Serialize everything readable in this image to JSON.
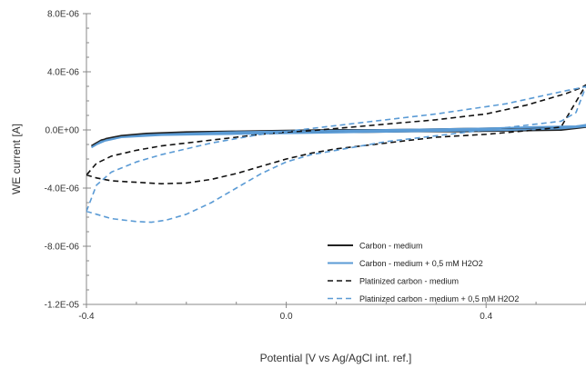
{
  "chart_data": {
    "type": "line",
    "title": "",
    "xlabel": "Potential [V vs Ag/AgCl int. ref.]",
    "ylabel": "WE current [A]",
    "xlim": [
      -0.4,
      0.6
    ],
    "ylim": [
      -1.2e-05,
      8e-06
    ],
    "x_ticks": [
      -0.4,
      0.0,
      0.4
    ],
    "x_tick_labels": [
      "-0.4",
      "0.0",
      "0.4"
    ],
    "y_ticks": [
      8e-06,
      4e-06,
      0,
      -4e-06,
      -8e-06,
      -1.2e-05
    ],
    "y_tick_labels": [
      "8.0E-06",
      "4.0E-06",
      "0.0E+00",
      "-4.0E-06",
      "-8.0E-06",
      "-1.2E-05"
    ],
    "y_minor_ticks_per_major": 4,
    "x_minor_ticks_per_major": 4,
    "grid": false,
    "legend_position": "bottom-right",
    "series": [
      {
        "name": "Carbon - medium",
        "color": "#222222",
        "dash": "solid",
        "x": [
          -0.39,
          -0.38,
          -0.36,
          -0.33,
          -0.28,
          -0.2,
          -0.1,
          0.0,
          0.1,
          0.2,
          0.3,
          0.4,
          0.5,
          0.58,
          0.6,
          0.6,
          0.55,
          0.45,
          0.35,
          0.25,
          0.15,
          0.05,
          -0.05,
          -0.15,
          -0.25,
          -0.33,
          -0.37,
          -0.39
        ],
        "y": [
          -1.1e-06,
          -9e-07,
          -6e-07,
          -4e-07,
          -2.5e-07,
          -1.5e-07,
          -1e-07,
          -5e-08,
          0,
          0,
          5e-08,
          1e-07,
          1.5e-07,
          2e-07,
          3e-07,
          2e-07,
          0,
          -5e-08,
          -1e-07,
          -1e-07,
          -1.5e-07,
          -1.5e-07,
          -2e-07,
          -2.5e-07,
          -3e-07,
          -4e-07,
          -7e-07,
          -1.1e-06
        ]
      },
      {
        "name": "Carbon - medium + 0,5 mM H2O2",
        "color": "#5b9bd5",
        "dash": "solid",
        "x": [
          -0.39,
          -0.38,
          -0.36,
          -0.33,
          -0.28,
          -0.2,
          -0.1,
          0.0,
          0.1,
          0.2,
          0.3,
          0.4,
          0.5,
          0.58,
          0.6,
          0.6,
          0.55,
          0.45,
          0.35,
          0.25,
          0.15,
          0.05,
          -0.05,
          -0.15,
          -0.25,
          -0.33,
          -0.37,
          -0.39
        ],
        "y": [
          -1.2e-06,
          -1e-06,
          -7e-07,
          -5e-07,
          -3.5e-07,
          -2.5e-07,
          -1.5e-07,
          -1e-07,
          -5e-08,
          0,
          5e-08,
          1e-07,
          2e-07,
          2.5e-07,
          3.5e-07,
          2.5e-07,
          1e-07,
          0,
          -5e-08,
          -1e-07,
          -1.5e-07,
          -2e-07,
          -2.5e-07,
          -3e-07,
          -3.5e-07,
          -5e-07,
          -8e-07,
          -1.2e-06
        ]
      },
      {
        "name": "Platinized carbon - medium",
        "color": "#111111",
        "dash": "dashed",
        "x": [
          -0.4,
          -0.38,
          -0.35,
          -0.3,
          -0.25,
          -0.2,
          -0.15,
          -0.1,
          -0.05,
          0.0,
          0.05,
          0.1,
          0.15,
          0.2,
          0.25,
          0.3,
          0.35,
          0.4,
          0.45,
          0.5,
          0.55,
          0.6,
          0.59,
          0.56,
          0.52,
          0.48,
          0.44,
          0.4,
          0.3,
          0.2,
          0.1,
          0.05,
          0.0,
          -0.05,
          -0.1,
          -0.15,
          -0.2,
          -0.25,
          -0.3,
          -0.35,
          -0.38,
          -0.4
        ],
        "y": [
          -3.1e-06,
          -3.3e-06,
          -3.5e-06,
          -3.6e-06,
          -3.7e-06,
          -3.65e-06,
          -3.4e-06,
          -3e-06,
          -2.5e-06,
          -2e-06,
          -1.6e-06,
          -1.3e-06,
          -1.1e-06,
          -9e-07,
          -7e-07,
          -5e-07,
          -4e-07,
          -3e-07,
          -1.5e-07,
          0,
          2e-07,
          3.1e-06,
          2.9e-06,
          2.5e-06,
          2.1e-06,
          1.7e-06,
          1.4e-06,
          1.1e-06,
          7e-07,
          4e-07,
          1e-07,
          -5e-08,
          -1.5e-07,
          -3e-07,
          -5e-07,
          -7e-07,
          -9e-07,
          -1.1e-06,
          -1.4e-06,
          -1.8e-06,
          -2.3e-06,
          -3.1e-06
        ]
      },
      {
        "name": "Platinized carbon - medium + 0,5 mM H2O2",
        "color": "#5b9bd5",
        "dash": "dashed",
        "x": [
          -0.4,
          -0.38,
          -0.35,
          -0.3,
          -0.27,
          -0.24,
          -0.2,
          -0.15,
          -0.1,
          -0.05,
          0.0,
          0.05,
          0.1,
          0.15,
          0.2,
          0.25,
          0.3,
          0.35,
          0.4,
          0.45,
          0.5,
          0.55,
          0.58,
          0.6,
          0.59,
          0.56,
          0.52,
          0.48,
          0.44,
          0.4,
          0.3,
          0.2,
          0.1,
          0.05,
          0.0,
          -0.05,
          -0.1,
          -0.15,
          -0.2,
          -0.25,
          -0.3,
          -0.35,
          -0.38,
          -0.4
        ],
        "y": [
          -5.6e-06,
          -5.8e-06,
          -6.1e-06,
          -6.3e-06,
          -6.35e-06,
          -6.2e-06,
          -5.8e-06,
          -5e-06,
          -4e-06,
          -3e-06,
          -2.2e-06,
          -1.7e-06,
          -1.4e-06,
          -1.1e-06,
          -8e-07,
          -6e-07,
          -4e-07,
          -2e-07,
          0,
          2e-07,
          4e-07,
          6e-07,
          1.2e-06,
          3e-06,
          2.9e-06,
          2.7e-06,
          2.4e-06,
          2.1e-06,
          1.8e-06,
          1.6e-06,
          1.1e-06,
          7e-07,
          3e-07,
          1e-07,
          -1e-07,
          -3e-07,
          -6e-07,
          -9e-07,
          -1.3e-06,
          -1.7e-06,
          -2.2e-06,
          -2.9e-06,
          -3.8e-06,
          -5.6e-06
        ]
      }
    ]
  }
}
